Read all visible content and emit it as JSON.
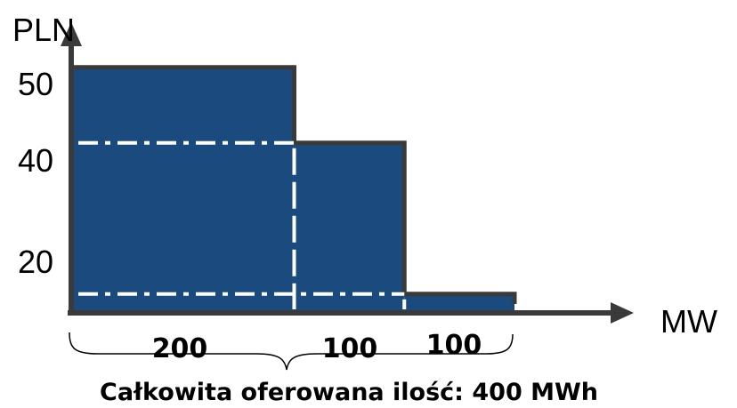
{
  "chart_data": {
    "type": "bar",
    "subtype": "step-merit-order",
    "ylabel": "PLN",
    "xlabel": "MW",
    "yticks": [
      "50",
      "40",
      "20"
    ],
    "segments": [
      {
        "width": 200,
        "price": 50,
        "label": "200"
      },
      {
        "width": 100,
        "price": 40,
        "label": "100"
      },
      {
        "width": 100,
        "price": 20,
        "label": "100"
      }
    ],
    "reference_prices": [
      40,
      20
    ],
    "caption": "Całkowita oferowana ilość: 400 MWh",
    "colors": {
      "fill": "#1b4a7e",
      "outline": "#3a3a3a",
      "guide": "#ffffff"
    }
  }
}
